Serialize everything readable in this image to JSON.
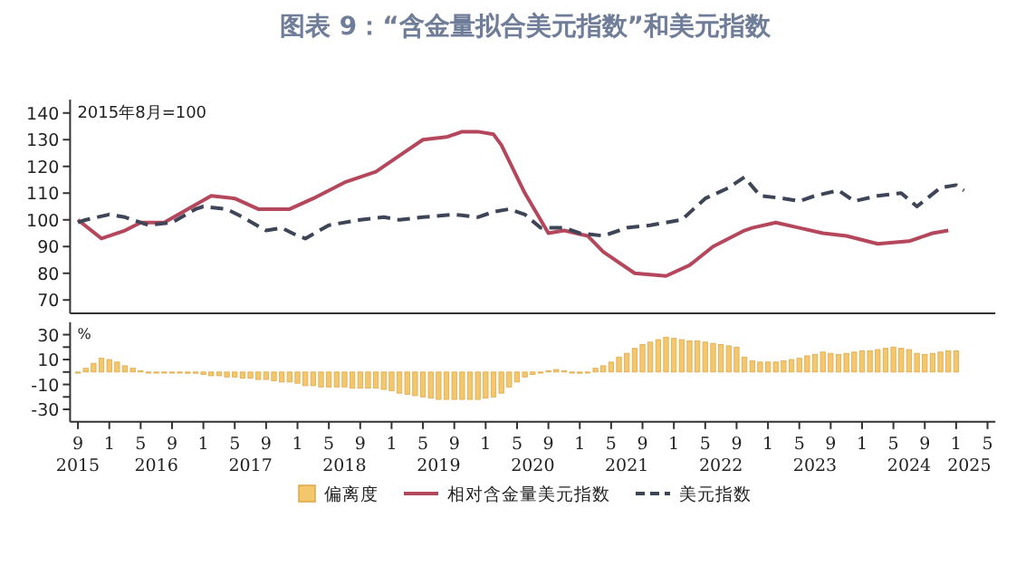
{
  "chart_data": [
    {
      "type": "line",
      "title": "图表 9：“含金量拟合美元指数”和美元指数",
      "annotations": [
        "2015年8月=100"
      ],
      "xlim": [
        "2015-08",
        "2025-06"
      ],
      "ylim": [
        65,
        145
      ],
      "yticks": [
        70,
        80,
        90,
        100,
        110,
        120,
        130,
        140
      ],
      "tick_labels": "y",
      "legend": "bottom",
      "marker": "none",
      "series": [
        {
          "name": "相对含金量美元指数",
          "color": "#b5475d",
          "line_style": "solid",
          "x": [
            "2015-09",
            "2015-12",
            "2016-03",
            "2016-05",
            "2016-08",
            "2016-11",
            "2017-02",
            "2017-05",
            "2017-08",
            "2017-12",
            "2018-03",
            "2018-07",
            "2018-11",
            "2019-02",
            "2019-05",
            "2019-08",
            "2019-10",
            "2019-12",
            "2020-02",
            "2020-03",
            "2020-06",
            "2020-09",
            "2020-11",
            "2021-02",
            "2021-04",
            "2021-08",
            "2021-12",
            "2022-03",
            "2022-06",
            "2022-10",
            "2022-11",
            "2023-02",
            "2023-05",
            "2023-08",
            "2023-11",
            "2024-03",
            "2024-07",
            "2024-10",
            "2024-12"
          ],
          "values": [
            100,
            93,
            96,
            99,
            99,
            104,
            109,
            108,
            104,
            104,
            108,
            114,
            118,
            124,
            130,
            131,
            133,
            133,
            132,
            128,
            110,
            95,
            96,
            94,
            88,
            80,
            79,
            83,
            90,
            96,
            97,
            99,
            97,
            95,
            94,
            91,
            92,
            95,
            96
          ]
        },
        {
          "name": "美元指数",
          "color": "#3d4557",
          "line_style": "dashed",
          "x": [
            "2015-09",
            "2015-10",
            "2016-01",
            "2016-03",
            "2016-06",
            "2016-09",
            "2016-12",
            "2017-01",
            "2017-04",
            "2017-06",
            "2017-09",
            "2017-11",
            "2018-01",
            "2018-02",
            "2018-05",
            "2018-09",
            "2018-12",
            "2019-02",
            "2019-05",
            "2019-09",
            "2019-12",
            "2020-02",
            "2020-04",
            "2020-06",
            "2020-08",
            "2020-11",
            "2021-01",
            "2021-04",
            "2021-07",
            "2021-10",
            "2022-02",
            "2022-05",
            "2022-08",
            "2022-10",
            "2022-12",
            "2023-03",
            "2023-05",
            "2023-07",
            "2023-10",
            "2023-12",
            "2024-03",
            "2024-06",
            "2024-08",
            "2024-11",
            "2025-01",
            "2025-02"
          ],
          "values": [
            99,
            100,
            102,
            101,
            98,
            99,
            104,
            105,
            104,
            101,
            96,
            97,
            94,
            93,
            98,
            100,
            101,
            100,
            101,
            102,
            101,
            103,
            104,
            102,
            97,
            97,
            95,
            94,
            97,
            98,
            100,
            108,
            112,
            116,
            109,
            108,
            107,
            109,
            111,
            107,
            109,
            110,
            105,
            112,
            113,
            111
          ]
        }
      ]
    },
    {
      "type": "bar",
      "ylabel": "%",
      "xlim": [
        "2015-08",
        "2025-06"
      ],
      "ylim": [
        -40,
        40
      ],
      "legend": "bottom",
      "yticks": [
        30,
        {
          "value": 20,
          "label": null
        },
        10,
        {
          "value": 0,
          "label": null
        },
        -10,
        {
          "value": -20,
          "label": null
        },
        -30
      ],
      "xticks": [
        {
          "value": "2015-09",
          "label": "9"
        },
        {
          "value": "2016-01",
          "label": "1"
        },
        {
          "value": "2016-05",
          "label": "5"
        },
        {
          "value": "2016-09",
          "label": "9"
        },
        {
          "value": "2017-01",
          "label": "1"
        },
        {
          "value": "2017-05",
          "label": "5"
        },
        {
          "value": "2017-09",
          "label": "9"
        },
        {
          "value": "2018-01",
          "label": "1"
        },
        {
          "value": "2018-05",
          "label": "5"
        },
        {
          "value": "2018-09",
          "label": "9"
        },
        {
          "value": "2019-01",
          "label": "1"
        },
        {
          "value": "2019-05",
          "label": "5"
        },
        {
          "value": "2019-09",
          "label": "9"
        },
        {
          "value": "2020-01",
          "label": "1"
        },
        {
          "value": "2020-05",
          "label": "5"
        },
        {
          "value": "2020-09",
          "label": "9"
        },
        {
          "value": "2021-01",
          "label": "1"
        },
        {
          "value": "2021-05",
          "label": "5"
        },
        {
          "value": "2021-09",
          "label": "9"
        },
        {
          "value": "2022-01",
          "label": "1"
        },
        {
          "value": "2022-05",
          "label": "5"
        },
        {
          "value": "2022-09",
          "label": "9"
        },
        {
          "value": "2023-01",
          "label": "1"
        },
        {
          "value": "2023-05",
          "label": "5"
        },
        {
          "value": "2023-09",
          "label": "9"
        },
        {
          "value": "2024-01",
          "label": "1"
        },
        {
          "value": "2024-05",
          "label": "5"
        },
        {
          "value": "2024-09",
          "label": "9"
        },
        {
          "value": "2025-01",
          "label": "1"
        },
        {
          "value": "2025-05",
          "label": "5"
        }
      ],
      "annotations": [
        "2015",
        "2016",
        "2017",
        "2018",
        "2019",
        "2020",
        "2021",
        "2022",
        "2023",
        "2024",
        "2025"
      ],
      "x": [
        "2015-09",
        "2015-10",
        "2015-11",
        "2015-12",
        "2016-01",
        "2016-02",
        "2016-03",
        "2016-04",
        "2016-05",
        "2016-06",
        "2016-07",
        "2016-08",
        "2016-09",
        "2016-10",
        "2016-11",
        "2016-12",
        "2017-01",
        "2017-02",
        "2017-03",
        "2017-04",
        "2017-05",
        "2017-06",
        "2017-07",
        "2017-08",
        "2017-09",
        "2017-10",
        "2017-11",
        "2017-12",
        "2018-01",
        "2018-02",
        "2018-03",
        "2018-04",
        "2018-05",
        "2018-06",
        "2018-07",
        "2018-08",
        "2018-09",
        "2018-10",
        "2018-11",
        "2018-12",
        "2019-01",
        "2019-02",
        "2019-03",
        "2019-04",
        "2019-05",
        "2019-06",
        "2019-07",
        "2019-08",
        "2019-09",
        "2019-10",
        "2019-11",
        "2019-12",
        "2020-01",
        "2020-02",
        "2020-03",
        "2020-04",
        "2020-05",
        "2020-06",
        "2020-07",
        "2020-08",
        "2020-09",
        "2020-10",
        "2020-11",
        "2020-12",
        "2021-01",
        "2021-02",
        "2021-03",
        "2021-04",
        "2021-05",
        "2021-06",
        "2021-07",
        "2021-08",
        "2021-09",
        "2021-10",
        "2021-11",
        "2021-12",
        "2022-01",
        "2022-02",
        "2022-03",
        "2022-04",
        "2022-05",
        "2022-06",
        "2022-07",
        "2022-08",
        "2022-09",
        "2022-10",
        "2022-11",
        "2022-12",
        "2023-01",
        "2023-02",
        "2023-03",
        "2023-04",
        "2023-05",
        "2023-06",
        "2023-07",
        "2023-08",
        "2023-09",
        "2023-10",
        "2023-11",
        "2023-12",
        "2024-01",
        "2024-02",
        "2024-03",
        "2024-04",
        "2024-05",
        "2024-06",
        "2024-07",
        "2024-08",
        "2024-09",
        "2024-10",
        "2024-11",
        "2024-12",
        "2025-01"
      ],
      "series": [
        {
          "name": "偏离度",
          "color": "#f3c76c",
          "values": [
            0,
            3,
            7,
            11,
            10,
            8,
            5,
            3,
            1,
            0,
            0,
            0,
            0,
            0,
            -1,
            -1,
            -2,
            -3,
            -3,
            -4,
            -4,
            -5,
            -5,
            -6,
            -6,
            -7,
            -8,
            -8,
            -9,
            -11,
            -11,
            -12,
            -12,
            -12,
            -12,
            -13,
            -13,
            -13,
            -13,
            -14,
            -15,
            -17,
            -18,
            -19,
            -20,
            -21,
            -22,
            -22,
            -22,
            -22,
            -22,
            -22,
            -21,
            -20,
            -17,
            -12,
            -8,
            -4,
            -2,
            0,
            1,
            2,
            1,
            0,
            -1,
            0,
            3,
            5,
            8,
            12,
            15,
            19,
            22,
            24,
            26,
            28,
            27,
            26,
            25,
            25,
            24,
            23,
            22,
            21,
            20,
            12,
            9,
            8,
            8,
            8,
            9,
            10,
            11,
            13,
            14,
            16,
            15,
            14,
            15,
            16,
            17,
            17,
            18,
            19,
            20,
            19,
            18,
            15,
            14,
            15,
            16,
            17,
            17
          ]
        }
      ]
    }
  ]
}
